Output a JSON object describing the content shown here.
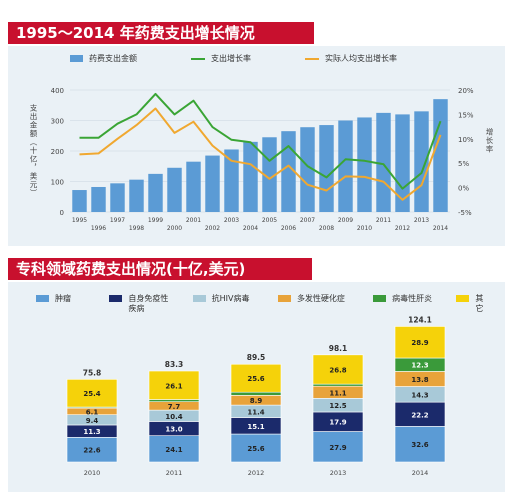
{
  "title1": "1995～2014 年药费支出增长情况",
  "title2": "专科领域药费支出情况(十亿,美元)",
  "chart_data": [
    {
      "type": "bar",
      "title": "1995～2014 年药费支出增长情况",
      "ylabel": "支出金额（十亿，美元）",
      "y2label": "增长率",
      "x": [
        "1995",
        "1996",
        "1997",
        "1998",
        "1999",
        "2000",
        "2001",
        "2002",
        "2003",
        "2004",
        "2005",
        "2006",
        "2007",
        "2008",
        "2009",
        "2010",
        "2011",
        "2012",
        "2013",
        "2014"
      ],
      "x_tick_labels": [
        "1995",
        "1997",
        "1999",
        "2001",
        "2003",
        "2005",
        "2007",
        "2009",
        "2011",
        "2013"
      ],
      "x_tick_labels_lower": [
        "1996",
        "1998",
        "2000",
        "2002",
        "2004",
        "2006",
        "2008",
        "2010",
        "2012",
        "2014"
      ],
      "ylim": [
        0,
        400
      ],
      "y_ticks": [
        "0",
        "100",
        "200",
        "300",
        "400"
      ],
      "y2lim": [
        -5,
        20
      ],
      "y2_ticks": [
        "-5%",
        "0%",
        "5%",
        "10%",
        "15%",
        "20%"
      ],
      "series": [
        {
          "name": "药费支出金额",
          "type": "bar",
          "axis": "left",
          "color": "#5b9bd5",
          "values": [
            72,
            82,
            94,
            106,
            125,
            145,
            165,
            185,
            205,
            230,
            245,
            265,
            278,
            285,
            300,
            310,
            325,
            320,
            330,
            370
          ]
        },
        {
          "name": "支出增长率",
          "type": "line",
          "axis": "right",
          "color": "#3aa535",
          "values": [
            10.2,
            10.2,
            13.1,
            15.0,
            19.2,
            15.0,
            17.8,
            12.4,
            9.8,
            9.3,
            5.5,
            8.5,
            4.4,
            2.1,
            5.8,
            5.5,
            4.8,
            -0.2,
            3.0,
            13.6
          ]
        },
        {
          "name": "实际人均支出增长率",
          "type": "line",
          "axis": "right",
          "color": "#f0a830",
          "values": [
            6.8,
            7.0,
            10.0,
            12.8,
            16.2,
            11.2,
            13.5,
            8.6,
            5.5,
            4.8,
            1.8,
            4.5,
            0.6,
            -0.6,
            2.3,
            2.2,
            1.2,
            -2.5,
            0.5,
            10.8
          ]
        }
      ],
      "grid": true,
      "legend": "top"
    },
    {
      "type": "bar",
      "stacked": true,
      "title": "专科领域药费支出情况(十亿,美元)",
      "categories": [
        "2010",
        "2011",
        "2012",
        "2013",
        "2014"
      ],
      "totals": [
        "75.8",
        "83.3",
        "89.5",
        "98.1",
        "124.1"
      ],
      "series": [
        {
          "name": "肿瘤",
          "color": "#5b9bd5",
          "values": [
            22.6,
            24.1,
            25.6,
            27.9,
            32.6
          ]
        },
        {
          "name": "自身免疫性疾病",
          "color": "#1b2a6b",
          "values": [
            11.3,
            13.0,
            15.1,
            17.9,
            22.2
          ]
        },
        {
          "name": "抗HIV病毒",
          "color": "#a8c9d8",
          "values": [
            9.4,
            10.4,
            11.4,
            12.5,
            14.3
          ]
        },
        {
          "name": "多发性硬化症",
          "color": "#e8a33a",
          "values": [
            6.1,
            7.7,
            8.9,
            11.1,
            13.8
          ]
        },
        {
          "name": "病毒性肝炎",
          "color": "#3a9a3a",
          "values": [
            0.9,
            2.0,
            2.9,
            1.9,
            12.3
          ]
        },
        {
          "name": "其它",
          "color": "#f5d20a",
          "values": [
            25.4,
            26.1,
            25.6,
            26.8,
            28.9
          ]
        }
      ],
      "value_labels": [
        [
          "22.6",
          "11.3",
          "9.4",
          "6.1",
          "",
          "25.4"
        ],
        [
          "24.1",
          "13.0",
          "10.4",
          "7.7",
          "",
          "26.1"
        ],
        [
          "25.6",
          "15.1",
          "11.4",
          "8.9",
          "",
          "25.6"
        ],
        [
          "27.9",
          "17.9",
          "12.5",
          "11.1",
          "",
          "26.8"
        ],
        [
          "32.6",
          "22.2",
          "14.3",
          "13.8",
          "12.3",
          "28.9"
        ]
      ],
      "ylim": [
        0,
        130
      ],
      "grid": false,
      "legend": "top"
    }
  ]
}
